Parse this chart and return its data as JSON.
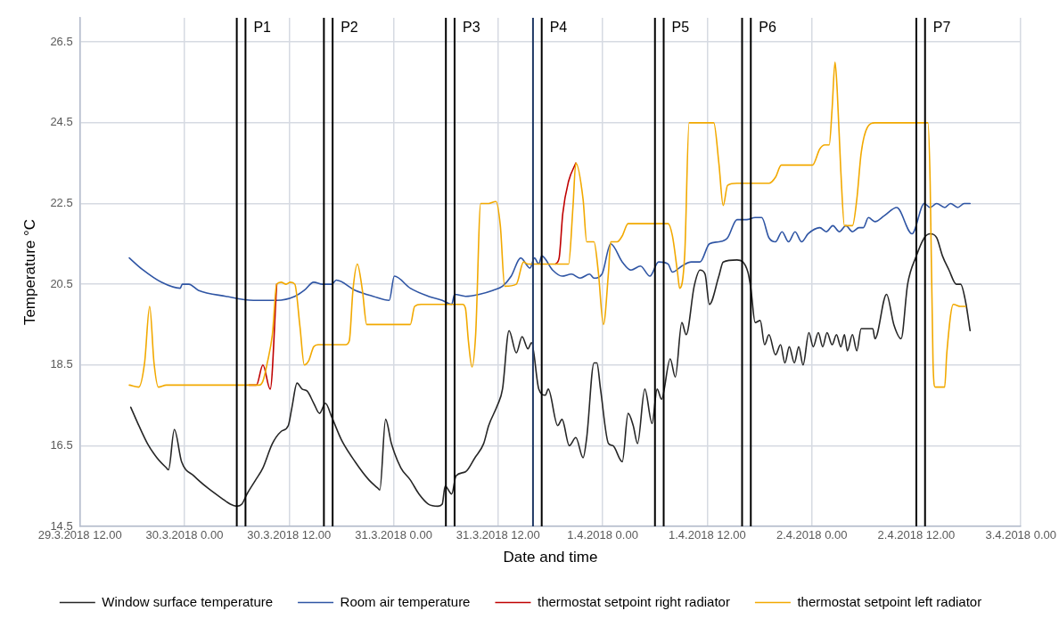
{
  "chart_data": {
    "type": "line",
    "xlabel": "Date and time",
    "ylabel": "Temperature °C",
    "marker": "none",
    "grid": true,
    "legend": "bottom",
    "xlim": [
      "2018-03-29T12:00",
      "2018-04-03T00:00"
    ],
    "xticks": [
      {
        "value": "2018-03-29T12:00",
        "label": "29.3.2018 12.00"
      },
      {
        "value": "2018-03-30T00:00",
        "label": "30.3.2018 0.00"
      },
      {
        "value": "2018-03-30T12:00",
        "label": "30.3.2018 12.00"
      },
      {
        "value": "2018-03-31T00:00",
        "label": "31.3.2018 0.00"
      },
      {
        "value": "2018-03-31T12:00",
        "label": "31.3.2018 12.00"
      },
      {
        "value": "2018-04-01T00:00",
        "label": "1.4.2018 0.00"
      },
      {
        "value": "2018-04-01T12:00",
        "label": "1.4.2018 12.00"
      },
      {
        "value": "2018-04-02T00:00",
        "label": "2.4.2018 0.00"
      },
      {
        "value": "2018-04-02T12:00",
        "label": "2.4.2018 12.00"
      },
      {
        "value": "2018-04-03T00:00",
        "label": "3.4.2018 0.00"
      }
    ],
    "ylim": [
      14.5,
      27.1
    ],
    "yticks": [
      14.5,
      16.5,
      18.5,
      20.5,
      22.5,
      24.5,
      26.5
    ],
    "ref_lines": [
      {
        "axis": "x",
        "value": "2018-03-30T06:00",
        "label": null,
        "color": "#000000"
      },
      {
        "axis": "x",
        "value": "2018-03-30T07:00",
        "label": "P1",
        "color": "#000000"
      },
      {
        "axis": "x",
        "value": "2018-03-30T16:00",
        "label": null,
        "color": "#000000"
      },
      {
        "axis": "x",
        "value": "2018-03-30T17:00",
        "label": "P2",
        "color": "#000000"
      },
      {
        "axis": "x",
        "value": "2018-03-31T06:00",
        "label": null,
        "color": "#000000"
      },
      {
        "axis": "x",
        "value": "2018-03-31T07:00",
        "label": "P3",
        "color": "#000000"
      },
      {
        "axis": "x",
        "value": "2018-03-31T16:00",
        "label": null,
        "color": "#1f3864"
      },
      {
        "axis": "x",
        "value": "2018-03-31T17:00",
        "label": "P4",
        "color": "#000000"
      },
      {
        "axis": "x",
        "value": "2018-04-01T06:00",
        "label": null,
        "color": "#000000"
      },
      {
        "axis": "x",
        "value": "2018-04-01T07:00",
        "label": "P5",
        "color": "#000000"
      },
      {
        "axis": "x",
        "value": "2018-04-01T16:00",
        "label": null,
        "color": "#000000"
      },
      {
        "axis": "x",
        "value": "2018-04-01T17:00",
        "label": "P6",
        "color": "#000000"
      },
      {
        "axis": "x",
        "value": "2018-04-02T12:00",
        "label": null,
        "color": "#000000"
      },
      {
        "axis": "x",
        "value": "2018-04-02T13:00",
        "label": "P7",
        "color": "#000000"
      }
    ],
    "series": [
      {
        "name": "Window surface temperature",
        "color": "#262626",
        "x": [
          "2018-03-29T17:50",
          "2018-03-29T18:45",
          "2018-03-29T19:45",
          "2018-03-29T20:50",
          "2018-03-29T21:55",
          "2018-03-29T22:10",
          "2018-03-29T22:50",
          "2018-03-29T23:40",
          "2018-03-30T01:05",
          "2018-03-30T02:40",
          "2018-03-30T04:15",
          "2018-03-30T05:15",
          "2018-03-30T06:00",
          "2018-03-30T06:35",
          "2018-03-30T07:10",
          "2018-03-30T08:10",
          "2018-03-30T09:00",
          "2018-03-30T10:05",
          "2018-03-30T11:05",
          "2018-03-30T11:55",
          "2018-03-30T12:20",
          "2018-03-30T12:55",
          "2018-03-30T13:30",
          "2018-03-30T14:05",
          "2018-03-30T14:50",
          "2018-03-30T15:30",
          "2018-03-30T16:10",
          "2018-03-30T16:55",
          "2018-03-30T18:00",
          "2018-03-30T19:35",
          "2018-03-30T21:10",
          "2018-03-30T22:10",
          "2018-03-30T22:25",
          "2018-03-30T23:05",
          "2018-03-30T23:45",
          "2018-03-31T00:50",
          "2018-03-31T01:55",
          "2018-03-31T02:55",
          "2018-03-31T04:00",
          "2018-03-31T05:05",
          "2018-03-31T05:35",
          "2018-03-31T05:55",
          "2018-03-31T06:40",
          "2018-03-31T07:10",
          "2018-03-31T08:15",
          "2018-03-31T09:20",
          "2018-03-31T10:20",
          "2018-03-31T10:55",
          "2018-03-31T11:55",
          "2018-03-31T12:30",
          "2018-03-31T13:15",
          "2018-03-31T14:05",
          "2018-03-31T14:45",
          "2018-03-31T15:25",
          "2018-03-31T15:50",
          "2018-03-31T16:40",
          "2018-03-31T17:25",
          "2018-03-31T17:45",
          "2018-03-31T18:50",
          "2018-03-31T19:20",
          "2018-03-31T20:10",
          "2018-03-31T20:55",
          "2018-03-31T21:45",
          "2018-03-31T22:10",
          "2018-03-31T23:00",
          "2018-03-31T23:20",
          "2018-03-31T23:45",
          "2018-04-01T00:40",
          "2018-04-01T01:10",
          "2018-04-01T02:15",
          "2018-04-01T02:55",
          "2018-04-01T03:30",
          "2018-04-01T04:00",
          "2018-04-01T04:50",
          "2018-04-01T05:40",
          "2018-04-01T06:15",
          "2018-04-01T06:45",
          "2018-04-01T07:45",
          "2018-04-01T08:20",
          "2018-04-01T09:05",
          "2018-04-01T09:35",
          "2018-04-01T10:30",
          "2018-04-01T11:10",
          "2018-04-01T11:45",
          "2018-04-01T12:15",
          "2018-04-01T13:20",
          "2018-04-01T13:50",
          "2018-04-01T15:25",
          "2018-04-01T16:40",
          "2018-04-01T17:00",
          "2018-04-01T17:30",
          "2018-04-01T18:05",
          "2018-04-01T18:35",
          "2018-04-01T19:05",
          "2018-04-01T19:50",
          "2018-04-01T20:25",
          "2018-04-01T20:55",
          "2018-04-01T21:25",
          "2018-04-01T22:00",
          "2018-04-01T22:30",
          "2018-04-01T23:00",
          "2018-04-01T23:40",
          "2018-04-02T00:10",
          "2018-04-02T00:45",
          "2018-04-02T01:15",
          "2018-04-02T01:45",
          "2018-04-02T02:20",
          "2018-04-02T02:50",
          "2018-04-02T03:20",
          "2018-04-02T03:45",
          "2018-04-02T04:05",
          "2018-04-02T04:40",
          "2018-04-02T05:10",
          "2018-04-02T05:40",
          "2018-04-02T06:25",
          "2018-04-02T07:00",
          "2018-04-02T07:15",
          "2018-04-02T08:35",
          "2018-04-02T09:25",
          "2018-04-02T10:15",
          "2018-04-02T11:00",
          "2018-04-02T12:00",
          "2018-04-02T12:55",
          "2018-04-02T13:35",
          "2018-04-02T14:20",
          "2018-04-02T15:00",
          "2018-04-02T15:45",
          "2018-04-02T16:35",
          "2018-04-02T17:05",
          "2018-04-02T17:40",
          "2018-04-02T18:10"
        ],
        "values": [
          17.45,
          17.0,
          16.55,
          16.2,
          15.95,
          15.9,
          16.9,
          16.1,
          15.75,
          15.45,
          15.2,
          15.05,
          15.0,
          15.05,
          15.3,
          15.65,
          15.95,
          16.55,
          16.85,
          17.0,
          17.45,
          18.05,
          17.9,
          17.85,
          17.55,
          17.3,
          17.55,
          17.2,
          16.65,
          16.1,
          15.65,
          15.45,
          15.4,
          17.15,
          16.55,
          15.95,
          15.65,
          15.3,
          15.05,
          15.0,
          15.05,
          15.5,
          15.3,
          15.75,
          15.85,
          16.2,
          16.55,
          17.0,
          17.5,
          17.9,
          19.35,
          18.8,
          19.2,
          18.9,
          19.05,
          17.9,
          17.75,
          17.9,
          17.0,
          17.15,
          16.5,
          16.7,
          16.2,
          16.7,
          18.55,
          18.55,
          17.9,
          16.55,
          16.5,
          16.1,
          17.3,
          17.0,
          16.55,
          17.9,
          17.05,
          17.9,
          17.65,
          18.65,
          18.2,
          19.55,
          19.25,
          20.45,
          20.85,
          20.75,
          20.0,
          20.7,
          21.05,
          21.1,
          20.8,
          20.4,
          19.55,
          19.6,
          19.0,
          19.25,
          18.75,
          19.0,
          18.55,
          18.95,
          18.55,
          18.95,
          18.5,
          19.3,
          18.95,
          19.3,
          18.95,
          19.3,
          19.0,
          19.25,
          18.95,
          19.25,
          18.85,
          19.25,
          18.85,
          19.4,
          19.4,
          19.4,
          19.15,
          20.25,
          19.5,
          19.15,
          20.5,
          21.2,
          21.65,
          21.75,
          21.65,
          21.2,
          20.85,
          20.5,
          20.5,
          20.05,
          19.35
        ]
      },
      {
        "name": "Room air temperature",
        "color": "#2f55a4",
        "x": [
          "2018-03-29T17:40",
          "2018-03-29T19:15",
          "2018-03-29T21:20",
          "2018-03-29T23:30",
          "2018-03-29T23:45",
          "2018-03-30T00:30",
          "2018-03-30T01:35",
          "2018-03-30T04:45",
          "2018-03-30T07:55",
          "2018-03-30T10:35",
          "2018-03-30T12:40",
          "2018-03-30T13:45",
          "2018-03-30T14:50",
          "2018-03-30T15:50",
          "2018-03-30T16:55",
          "2018-03-30T17:25",
          "2018-03-30T19:35",
          "2018-03-30T21:40",
          "2018-03-30T23:30",
          "2018-03-31T00:05",
          "2018-03-31T01:55",
          "2018-03-31T04:00",
          "2018-03-31T05:35",
          "2018-03-31T06:40",
          "2018-03-31T07:00",
          "2018-03-31T08:15",
          "2018-03-31T09:50",
          "2018-03-31T11:25",
          "2018-03-31T12:30",
          "2018-03-31T13:30",
          "2018-03-31T14:35",
          "2018-03-31T15:40",
          "2018-03-31T16:10",
          "2018-03-31T16:40",
          "2018-03-31T17:00",
          "2018-03-31T18:15",
          "2018-03-31T19:20",
          "2018-03-31T20:25",
          "2018-03-31T21:25",
          "2018-03-31T22:30",
          "2018-03-31T23:00",
          "2018-03-31T23:55",
          "2018-04-01T00:55",
          "2018-04-01T02:15",
          "2018-04-01T03:15",
          "2018-04-01T04:20",
          "2018-04-01T05:25",
          "2018-04-01T06:25",
          "2018-04-01T07:30",
          "2018-04-01T08:00",
          "2018-04-01T09:05",
          "2018-04-01T10:10",
          "2018-04-01T11:10",
          "2018-04-01T12:15",
          "2018-04-01T13:20",
          "2018-04-01T14:20",
          "2018-04-01T15:25",
          "2018-04-01T16:30",
          "2018-04-01T17:30",
          "2018-04-01T18:15",
          "2018-04-01T19:05",
          "2018-04-01T19:50",
          "2018-04-01T20:35",
          "2018-04-01T21:20",
          "2018-04-01T22:05",
          "2018-04-01T22:50",
          "2018-04-01T23:35",
          "2018-04-02T00:55",
          "2018-04-02T01:40",
          "2018-04-02T02:25",
          "2018-04-02T03:10",
          "2018-04-02T03:55",
          "2018-04-02T04:40",
          "2018-04-02T05:25",
          "2018-04-02T05:55",
          "2018-04-02T06:30",
          "2018-04-02T07:15",
          "2018-04-02T08:20",
          "2018-04-02T09:45",
          "2018-04-02T11:30",
          "2018-04-02T12:55",
          "2018-04-02T13:35",
          "2018-04-02T14:20",
          "2018-04-02T15:15",
          "2018-04-02T15:55",
          "2018-04-02T16:45",
          "2018-04-02T17:30",
          "2018-04-02T18:10"
        ],
        "values": [
          21.15,
          20.85,
          20.55,
          20.4,
          20.5,
          20.5,
          20.35,
          20.2,
          20.1,
          20.1,
          20.2,
          20.35,
          20.55,
          20.5,
          20.5,
          20.6,
          20.35,
          20.2,
          20.1,
          20.7,
          20.4,
          20.2,
          20.1,
          20.0,
          20.25,
          20.2,
          20.25,
          20.35,
          20.45,
          20.7,
          21.15,
          20.9,
          21.15,
          21.0,
          21.2,
          20.85,
          20.7,
          20.75,
          20.65,
          20.75,
          20.65,
          20.75,
          21.5,
          21.05,
          20.85,
          20.95,
          20.7,
          21.05,
          21.0,
          20.8,
          20.95,
          21.05,
          21.05,
          21.5,
          21.55,
          21.65,
          22.1,
          22.1,
          22.15,
          22.15,
          21.65,
          21.55,
          21.8,
          21.55,
          21.8,
          21.55,
          21.75,
          21.9,
          21.8,
          21.95,
          21.8,
          21.95,
          21.8,
          21.9,
          21.9,
          22.15,
          22.05,
          22.2,
          22.4,
          21.75,
          22.5,
          22.4,
          22.5,
          22.4,
          22.5,
          22.4,
          22.5,
          22.5
        ]
      },
      {
        "name": "thermostat setpoint right radiator",
        "color": "#c00000",
        "x": [
          "2018-03-30T07:25",
          "2018-03-30T08:15",
          "2018-03-30T09:00",
          "2018-03-30T09:50",
          "2018-03-30T10:35",
          "2018-03-31T00:00",
          "2018-03-31T18:35",
          "2018-03-31T19:00",
          "2018-03-31T19:25",
          "2018-03-31T20:05",
          "2018-03-31T20:55"
        ],
        "values": [
          18.0,
          18.0,
          18.5,
          17.9,
          20.5,
          null,
          21.0,
          21.15,
          22.25,
          23.05,
          23.5
        ]
      },
      {
        "name": "thermostat setpoint left radiator",
        "color": "#f2a900",
        "x": [
          "2018-03-29T17:40",
          "2018-03-29T18:45",
          "2018-03-29T19:25",
          "2018-03-29T20:00",
          "2018-03-29T20:30",
          "2018-03-29T21:00",
          "2018-03-29T21:55",
          "2018-03-30T07:55",
          "2018-03-30T08:35",
          "2018-03-30T09:00",
          "2018-03-30T09:30",
          "2018-03-30T10:05",
          "2018-03-30T10:35",
          "2018-03-30T11:05",
          "2018-03-30T11:40",
          "2018-03-30T12:10",
          "2018-03-30T12:40",
          "2018-03-30T13:15",
          "2018-03-30T13:45",
          "2018-03-30T14:15",
          "2018-03-30T14:50",
          "2018-03-30T15:20",
          "2018-03-30T18:30",
          "2018-03-30T18:55",
          "2018-03-30T19:20",
          "2018-03-30T19:50",
          "2018-03-30T20:25",
          "2018-03-30T20:55",
          "2018-03-30T21:40",
          "2018-03-31T01:20",
          "2018-03-31T01:55",
          "2018-03-31T02:25",
          "2018-03-31T03:10",
          "2018-03-31T07:55",
          "2018-03-31T08:15",
          "2018-03-31T08:35",
          "2018-03-31T09:00",
          "2018-03-31T09:25",
          "2018-03-31T10:00",
          "2018-03-31T10:55",
          "2018-03-31T11:45",
          "2018-03-31T12:15",
          "2018-03-31T12:45",
          "2018-03-31T14:05",
          "2018-03-31T14:55",
          "2018-03-31T15:25",
          "2018-03-31T20:05",
          "2018-03-31T20:35",
          "2018-03-31T20:55",
          "2018-03-31T21:45",
          "2018-03-31T22:10",
          "2018-03-31T23:00",
          "2018-03-31T23:30",
          "2018-04-01T00:05",
          "2018-04-01T00:40",
          "2018-04-01T00:55",
          "2018-04-01T01:40",
          "2018-04-01T02:15",
          "2018-04-01T02:55",
          "2018-04-01T07:30",
          "2018-04-01T08:00",
          "2018-04-01T08:35",
          "2018-04-01T08:50",
          "2018-04-01T09:25",
          "2018-04-01T09:55",
          "2018-04-01T12:15",
          "2018-04-01T12:45",
          "2018-04-01T13:20",
          "2018-04-01T13:50",
          "2018-04-01T14:20",
          "2018-04-01T15:25",
          "2018-04-01T19:05",
          "2018-04-01T19:50",
          "2018-04-01T20:30",
          "2018-04-01T23:20",
          "2018-04-02T00:05",
          "2018-04-02T00:55",
          "2018-04-02T01:30",
          "2018-04-02T02:00",
          "2018-04-02T02:20",
          "2018-04-02T02:40",
          "2018-04-02T02:55",
          "2018-04-02T03:20",
          "2018-04-02T03:45",
          "2018-04-02T04:40",
          "2018-04-02T05:10",
          "2018-04-02T05:40",
          "2018-04-02T06:25",
          "2018-04-02T07:15",
          "2018-04-02T12:55",
          "2018-04-02T13:20",
          "2018-04-02T13:35",
          "2018-04-02T13:55",
          "2018-04-02T14:10",
          "2018-04-02T15:15",
          "2018-04-02T15:30",
          "2018-04-02T16:15",
          "2018-04-02T17:05",
          "2018-04-02T17:40"
        ],
        "values": [
          18.0,
          17.95,
          18.55,
          19.95,
          18.55,
          17.95,
          18.0,
          18.0,
          18.0,
          18.1,
          18.55,
          19.25,
          20.5,
          20.55,
          20.5,
          20.55,
          20.5,
          19.45,
          18.5,
          18.6,
          18.95,
          19.0,
          19.0,
          19.1,
          20.35,
          21.0,
          20.35,
          19.5,
          19.5,
          19.5,
          19.5,
          19.95,
          20.0,
          20.0,
          19.9,
          19.1,
          18.45,
          19.25,
          22.5,
          22.5,
          22.55,
          21.95,
          20.45,
          20.5,
          21.05,
          21.0,
          21.0,
          22.4,
          23.5,
          22.6,
          21.55,
          21.55,
          20.8,
          19.5,
          20.8,
          21.55,
          21.55,
          21.7,
          22.0,
          22.0,
          21.7,
          20.8,
          20.4,
          21.25,
          24.5,
          24.5,
          24.5,
          23.5,
          22.45,
          22.95,
          23.0,
          23.0,
          23.15,
          23.45,
          23.45,
          23.45,
          23.85,
          23.95,
          23.95,
          24.85,
          26.0,
          25.3,
          23.3,
          21.95,
          21.95,
          22.6,
          23.75,
          24.4,
          24.5,
          24.5,
          24.5,
          23.05,
          18.55,
          17.95,
          17.95,
          18.8,
          20.0,
          19.95,
          19.95
        ]
      }
    ]
  }
}
